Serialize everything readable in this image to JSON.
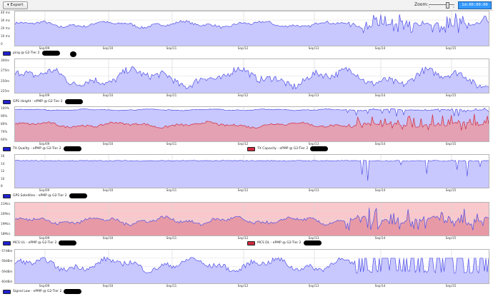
{
  "toolbar": {
    "export_label": "▾ Export",
    "zoom_label": "Zoom:",
    "zoom_value": "1d:00:00:00",
    "zoom_ticks": [
      "1",
      "2"
    ]
  },
  "x_labels": [
    "Sep/09",
    "Sep/10",
    "Sep/11",
    "Sep/12",
    "Sep/13",
    "Sep/14",
    "Sep/15"
  ],
  "colors": {
    "blue_fill": "#c8c8ff",
    "blue_line": "#5050e6",
    "red_fill": "#e79aa6",
    "red_line": "#d02a40",
    "pink_band": "#f9c8cc"
  },
  "panels": [
    {
      "name": "ping",
      "y_labels": [
        "40 ms",
        "30 ms",
        "20 ms",
        "10 ms",
        "0"
      ],
      "legends": [
        {
          "color": "blue",
          "text": "ping @ G2-Tier 2"
        }
      ]
    },
    {
      "name": "gps-height",
      "y_labels": [
        "300m",
        "275m",
        "250m",
        "225m"
      ],
      "legends": [
        {
          "color": "blue",
          "text": "GPS Height - ePMP @ G2-Tier 2"
        }
      ]
    },
    {
      "name": "tx-quality",
      "y_labels": [
        "100%",
        "90%",
        "80%",
        "70%",
        "60%"
      ],
      "legends": [
        {
          "color": "blue",
          "text": "TX Quality - ePMP @ G2-Tier 2"
        },
        {
          "color": "red",
          "text": "TX Capacity - ePMP @ G2-Tier 2"
        }
      ]
    },
    {
      "name": "gps-satellites",
      "y_labels": [
        "16",
        "14",
        "12",
        "10",
        "8"
      ],
      "legends": [
        {
          "color": "blue",
          "text": "GPS Satellites - ePMP @ G2-Tier 2"
        }
      ]
    },
    {
      "name": "mcs",
      "y_labels": [
        "21Mcs",
        "20Mcs",
        "19Mcs",
        "18Mcs"
      ],
      "legends": [
        {
          "color": "blue",
          "text": "MCS UL - ePMP @ G2-Tier 2"
        },
        {
          "color": "red",
          "text": "MCS DL - ePMP @ G2-Tier 2"
        }
      ]
    },
    {
      "name": "signal-low",
      "y_labels": [
        "-57dBm",
        "-58dBm",
        "-59dBm",
        "-60dBm"
      ],
      "legends": [
        {
          "color": "blue",
          "text": "Signal Low - ePMP @ G2-Tier 2"
        }
      ]
    }
  ]
}
